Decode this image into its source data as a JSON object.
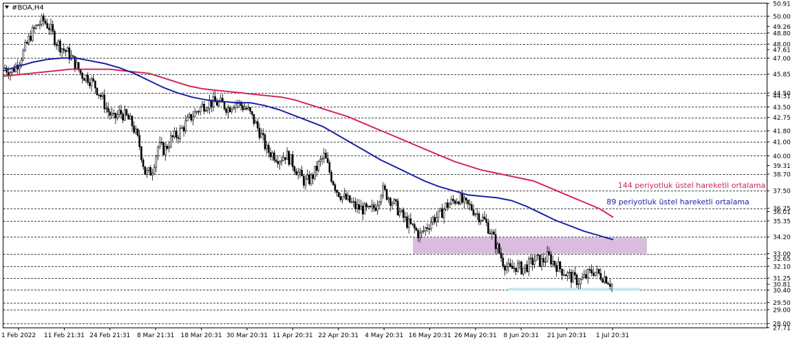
{
  "chart_data": {
    "type": "candlestick",
    "title": "#BOA,H4",
    "grid": true,
    "ylim": [
      27.71,
      50.91
    ],
    "y_tick_labels": [
      "50.91",
      "50.00",
      "49.26",
      "48.80",
      "48.00",
      "47.61",
      "47.00",
      "45.85",
      "44.50",
      "44.31",
      "43.50",
      "42.75",
      "41.80",
      "41.00",
      "40.00",
      "39.31",
      "38.70",
      "37.50",
      "36.25",
      "36.01",
      "35.35",
      "34.20",
      "33.00",
      "32.65",
      "32.10",
      "31.25",
      "30.81",
      "30.40",
      "29.50",
      "29.00",
      "28.00",
      "27.71"
    ],
    "horizontal_levels": [
      50.0,
      48.8,
      48.0,
      47.0,
      45.85,
      44.5,
      43.5,
      42.75,
      41.8,
      41.0,
      40.0,
      38.7,
      37.5,
      36.25,
      35.35,
      34.2,
      33.0,
      32.1,
      31.25,
      30.4,
      29.5,
      29.0,
      28.0
    ],
    "x_tick_labels": [
      "1 Feb 2022",
      "11 Feb 21:31",
      "24 Feb 21:31",
      "8 Mar 21:31",
      "18 Mar 20:31",
      "30 Mar 20:31",
      "11 Apr 20:31",
      "22 Apr 20:31",
      "4 May 20:31",
      "16 May 20:31",
      "26 May 20:31",
      "8 Jun 20:31",
      "21 Jun 20:31",
      "1 Jul 20:31"
    ],
    "price_path": [
      46.3,
      46.0,
      46.6,
      47.5,
      48.6,
      49.3,
      49.7,
      49.2,
      48.2,
      47.7,
      47.3,
      46.6,
      45.8,
      45.6,
      45.1,
      44.3,
      43.3,
      42.6,
      43.1,
      42.8,
      42.2,
      40.9,
      38.7,
      38.9,
      40.7,
      40.4,
      41.2,
      41.5,
      42.1,
      42.7,
      43.2,
      43.6,
      43.8,
      43.8,
      43.7,
      43.4,
      43.9,
      43.6,
      43.3,
      42.5,
      41.6,
      40.4,
      40.1,
      39.8,
      40.1,
      39.5,
      38.7,
      38.1,
      38.4,
      39.3,
      40.0,
      38.6,
      37.5,
      37.0,
      36.7,
      36.3,
      36.2,
      36.0,
      36.4,
      37.6,
      37.1,
      36.5,
      35.8,
      35.2,
      34.8,
      34.3,
      34.9,
      35.5,
      35.7,
      36.4,
      36.7,
      37.0,
      36.5,
      36.3,
      35.8,
      35.4,
      34.6,
      33.5,
      32.4,
      31.8,
      32.1,
      31.9,
      32.2,
      32.6,
      32.4,
      32.8,
      32.3,
      31.9,
      31.5,
      31.2,
      31.0,
      31.4,
      31.8,
      31.5,
      31.3,
      30.8
    ],
    "series": [
      {
        "name": "144 periyotluk üstel hareketli ortalama",
        "color": "#d4264e",
        "values": [
          45.7,
          45.8,
          45.9,
          46.0,
          46.1,
          46.2,
          46.2,
          46.2,
          46.2,
          46.1,
          46.0,
          45.9,
          45.6,
          45.3,
          45.0,
          44.8,
          44.7,
          44.6,
          44.5,
          44.4,
          44.3,
          44.2,
          44.0,
          43.7,
          43.4,
          43.1,
          42.8,
          42.4,
          42.0,
          41.6,
          41.2,
          40.8,
          40.4,
          40.0,
          39.6,
          39.3,
          39.0,
          38.8,
          38.6,
          38.4,
          38.2,
          37.8,
          37.4,
          37.0,
          36.6,
          36.2,
          35.6
        ]
      },
      {
        "name": "89 periyotluk üstel hareketli ortalama",
        "color": "#1a1fa6",
        "values": [
          46.1,
          46.4,
          46.7,
          46.9,
          47.0,
          47.0,
          46.8,
          46.6,
          46.3,
          45.9,
          45.4,
          44.9,
          44.5,
          44.2,
          44.0,
          43.9,
          43.8,
          43.8,
          43.6,
          43.3,
          42.9,
          42.5,
          42.1,
          41.5,
          40.9,
          40.3,
          39.7,
          39.2,
          38.7,
          38.2,
          37.8,
          37.5,
          37.2,
          37.1,
          37.0,
          36.8,
          36.4,
          35.9,
          35.4,
          35.0,
          34.6,
          34.3,
          34.0
        ]
      }
    ],
    "zones": [
      {
        "name": "resistance-zone",
        "from": 33.0,
        "to": 34.15,
        "color": "#d7b8dc"
      },
      {
        "name": "support-zone",
        "from": 30.35,
        "to": 30.55,
        "color": "#bfe7ee"
      }
    ],
    "annotations": [
      {
        "text": "144 periyotluk üstel hareketli ortalama",
        "color": "#d4264e"
      },
      {
        "text": "89 periyotluk üstel hareketli ortalama",
        "color": "#1a1fa6"
      }
    ]
  }
}
